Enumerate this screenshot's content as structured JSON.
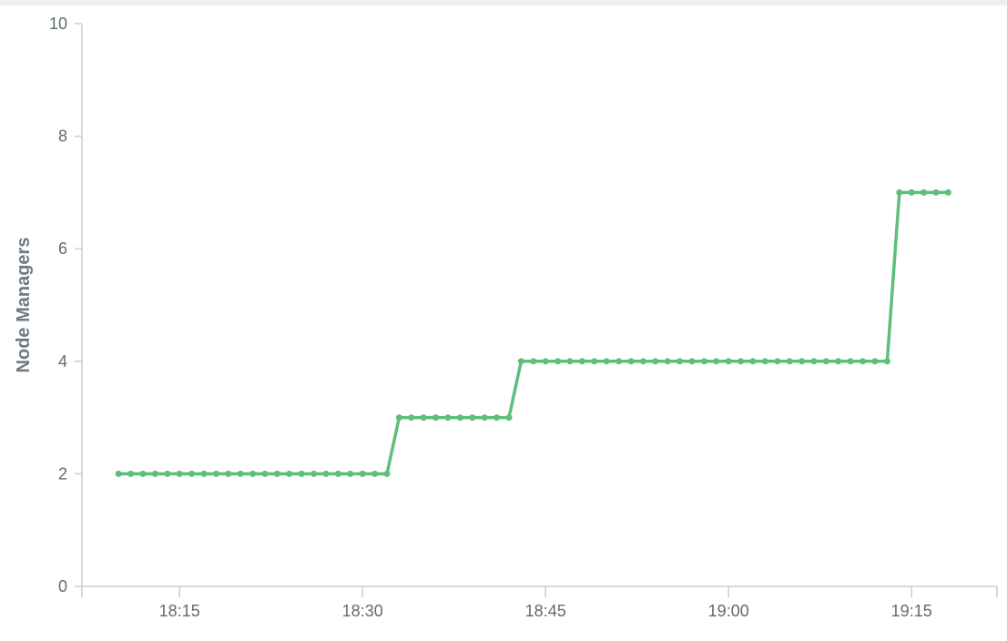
{
  "chart_data": {
    "type": "line",
    "title": "",
    "xlabel": "",
    "ylabel": "Node Managers",
    "ylim": [
      0,
      10
    ],
    "y_ticks": [
      "0",
      "2",
      "4",
      "6",
      "8",
      "10"
    ],
    "xlim": [
      "18:07",
      "19:22"
    ],
    "x_ticks": [
      "18:15",
      "18:30",
      "18:45",
      "19:00",
      "19:15"
    ],
    "grid": false,
    "legend": "none",
    "colors": {
      "line": "#5cbf7a",
      "axis": "#c9ced2",
      "tick_text": "#5f6b73",
      "axis_title": "#6f7a82"
    },
    "series": [
      {
        "x": [
          "18:10",
          "18:11",
          "18:12",
          "18:13",
          "18:14",
          "18:15",
          "18:16",
          "18:17",
          "18:18",
          "18:19",
          "18:20",
          "18:21",
          "18:22",
          "18:23",
          "18:24",
          "18:25",
          "18:26",
          "18:27",
          "18:28",
          "18:29",
          "18:30",
          "18:31",
          "18:32",
          "18:33",
          "18:34",
          "18:35",
          "18:36",
          "18:37",
          "18:38",
          "18:39",
          "18:40",
          "18:41",
          "18:42",
          "18:43",
          "18:44",
          "18:45",
          "18:46",
          "18:47",
          "18:48",
          "18:49",
          "18:50",
          "18:51",
          "18:52",
          "18:53",
          "18:54",
          "18:55",
          "18:56",
          "18:57",
          "18:58",
          "18:59",
          "19:00",
          "19:01",
          "19:02",
          "19:03",
          "19:04",
          "19:05",
          "19:06",
          "19:07",
          "19:08",
          "19:09",
          "19:10",
          "19:11",
          "19:12",
          "19:13",
          "19:14",
          "19:15",
          "19:16",
          "19:17",
          "19:18"
        ],
        "y": [
          2,
          2,
          2,
          2,
          2,
          2,
          2,
          2,
          2,
          2,
          2,
          2,
          2,
          2,
          2,
          2,
          2,
          2,
          2,
          2,
          2,
          2,
          2,
          3,
          3,
          3,
          3,
          3,
          3,
          3,
          3,
          3,
          3,
          4,
          4,
          4,
          4,
          4,
          4,
          4,
          4,
          4,
          4,
          4,
          4,
          4,
          4,
          4,
          4,
          4,
          4,
          4,
          4,
          4,
          4,
          4,
          4,
          4,
          4,
          4,
          4,
          4,
          4,
          4,
          7,
          7,
          7,
          7,
          7
        ]
      }
    ]
  }
}
